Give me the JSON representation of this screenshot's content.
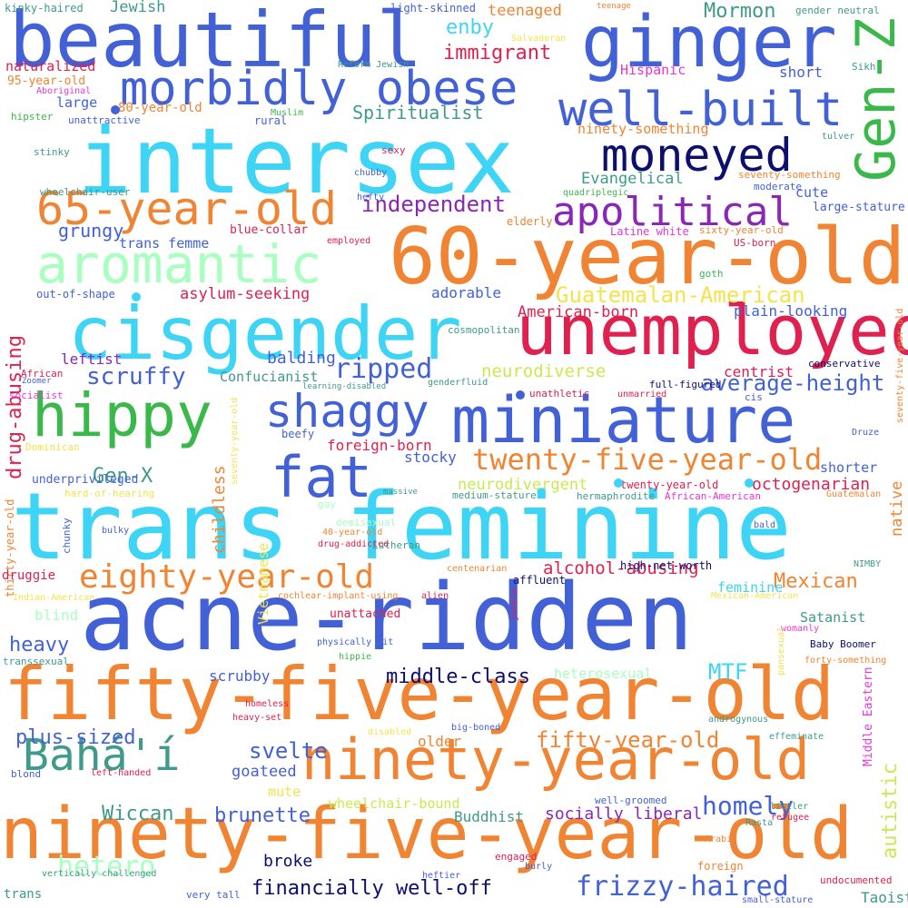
{
  "colors": {
    "background": "#ffffff",
    "royal_blue": "#4361d6",
    "cyan": "#3dd4f5",
    "orange": "#f08432",
    "crimson": "#e0204e",
    "navy": "#0c0f6e",
    "mint": "#a8ffc0",
    "green": "#3bb84a",
    "teal": "#3f9a8a",
    "purple": "#8a26b8",
    "lime": "#c8ea50",
    "yellow": "#f4e34a",
    "magenta": "#e836d8"
  },
  "words": [
    "beautiful",
    "ginger",
    "Gen-Z",
    "morbidly obese",
    "well-built",
    "intersex",
    "moneyed",
    "65-year-old",
    "apolitical",
    "aromantic",
    "60-year-old",
    "cisgender",
    "unemployed",
    "drug-abusing",
    "hippy",
    "miniature",
    "shaggy",
    "fat",
    "trans feminine",
    "acne-ridden",
    "fifty-five-year-old",
    "ninety-year-old",
    "ninety-five-year-old",
    "eighty-year-old",
    "autistic",
    "twenty-five-year-old",
    "Bahá'í",
    "Guatemalan-American",
    "independent",
    "immigrant",
    "enby",
    "Mormon",
    "Spiritualist",
    "ninety-something",
    "Evangelical",
    "grungy",
    "scruffy",
    "ripped",
    "neurodiverse",
    "average-height",
    "native",
    "Gen-X",
    "childless",
    "thirty-year-old",
    "Vietnamese",
    "Mexican",
    "alcohol-abusing",
    "homely",
    "frizzy-haired",
    "financially well-off",
    "middle-class",
    "plus-sized",
    "svelte",
    "heavy",
    "hetero",
    "Wiccan",
    "brunette",
    "broke",
    "socially liberal",
    "fifty-year-old",
    "MTF",
    "Jewish",
    "kinky-haired",
    "light-skinned",
    "teenaged",
    "teenage",
    "gender neutral",
    "Salvadoran",
    "naturalized",
    "95-year-old",
    "Reform Jewish",
    "Hispanic",
    "short",
    "Sikh",
    "Aboriginal",
    "large",
    "80-year-old",
    "hipster",
    "unattractive",
    "Muslim",
    "rural",
    "stinky",
    "sexy",
    "tulver",
    "chubby",
    "seventy-something",
    "wheelchair-user",
    "moderate",
    "cute",
    "quadriplegic",
    "hefty",
    "elderly",
    "large-stature",
    "blue-collar",
    "Latine white",
    "sixty-year-old",
    "employed",
    "US-born",
    "trans femme",
    "goth",
    "seventy-five-year-old",
    "out-of-shape",
    "adorable",
    "asylum-seeking",
    "plain-looking",
    "cosmopolitan",
    "American-born",
    "African",
    "Zoomer",
    "leftist",
    "balding",
    "centrist",
    "conservative",
    "Confucianist",
    "socialist",
    "learning-disabled",
    "genderfluid",
    "unathletic",
    "full-figured",
    "unmarried",
    "cis",
    "seventy-year-old",
    "Dominican",
    "beefy",
    "foreign-born",
    "Druze",
    "underprivileged",
    "stocky",
    "shorter",
    "chunky",
    "neurodivergent",
    "twenty-year-old",
    "octogenarian",
    "hard-of-hearing",
    "massive",
    "medium-stature",
    "hermaphrodite",
    "African-American",
    "Guatemalan",
    "gay",
    "demisexual",
    "bulky",
    "40-year-old",
    "bald",
    "drug-addicted",
    "Lutheran",
    "high-net-worth",
    "druggie",
    "centenarian",
    "affluent",
    "NIMBY",
    "feminine",
    "Indian-American",
    "cochlear-implant-using",
    "alien",
    "Mexican-American",
    "blind",
    "junkie",
    "Satanist",
    "unattached",
    "womanly",
    "physically fit",
    "pansexual",
    "Baby Boomer",
    "transsexual",
    "hippie",
    "forty-something",
    "scrubby",
    "heterosexual",
    "Middle Eastern",
    "homeless",
    "androgynous",
    "heavy-set",
    "effeminate",
    "disabled",
    "big-boned",
    "older",
    "goateed",
    "blond",
    "left-handed",
    "mute",
    "wheelchair-bound",
    "well-groomed",
    "littler",
    "refugee",
    "Buddhist",
    "Rasta",
    "Arabic",
    "engaged",
    "burly",
    "foreign",
    "vertically challenged",
    "heftier",
    "undocumented",
    "trans",
    "very tall",
    "small-stature",
    "Taoist"
  ]
}
